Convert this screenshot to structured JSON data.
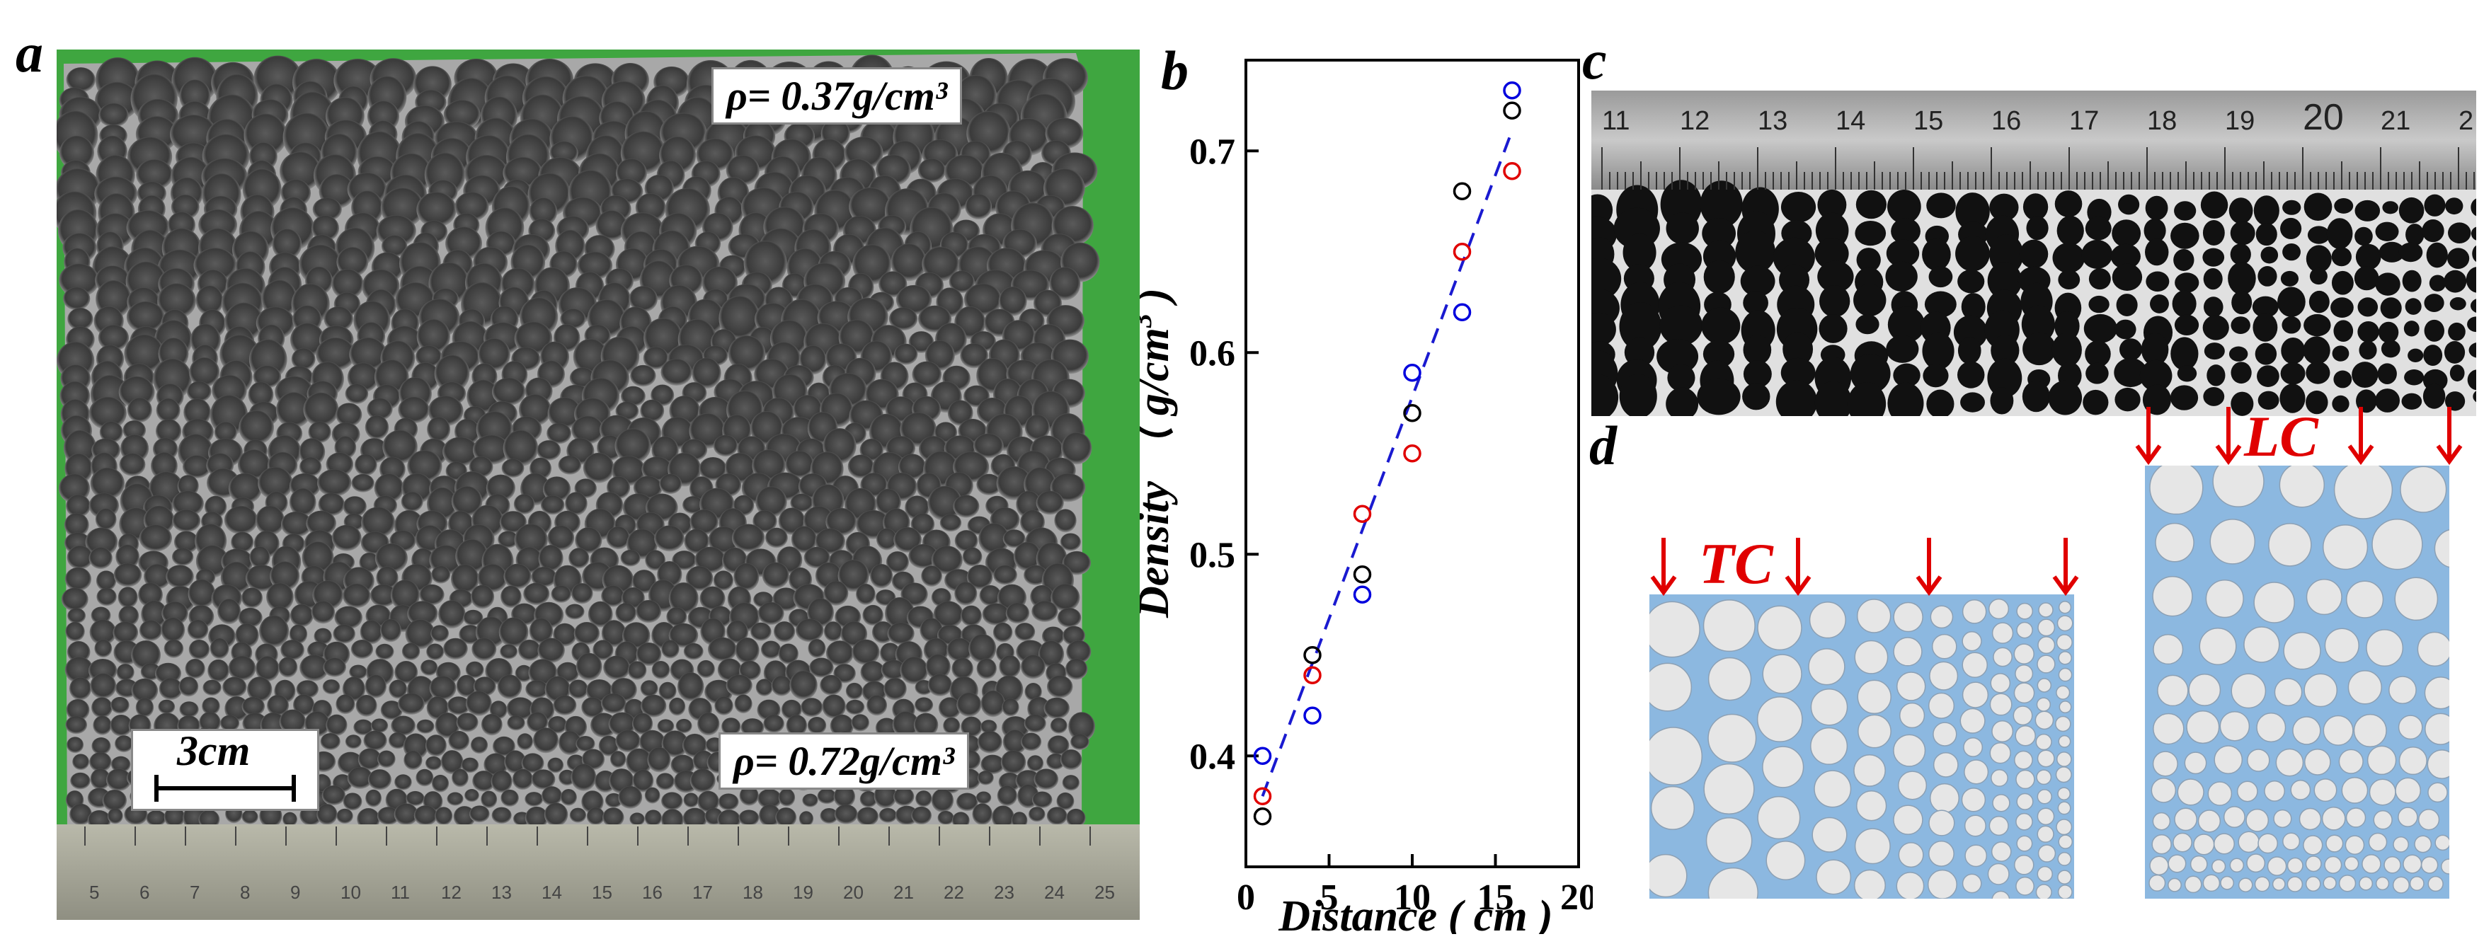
{
  "panels": {
    "a": {
      "letter": "a"
    },
    "b": {
      "letter": "b"
    },
    "c": {
      "letter": "c"
    },
    "d": {
      "letter": "d"
    }
  },
  "panel_a": {
    "top_density": "ρ= 0.37g/cm³",
    "bottom_density": "ρ= 0.72g/cm³",
    "scale_bar": "3cm",
    "ruler_ticks": [
      "5",
      "6",
      "7",
      "8",
      "9",
      "10",
      "11",
      "12",
      "13",
      "14",
      "15",
      "16",
      "17",
      "18",
      "19",
      "20",
      "21",
      "22",
      "23",
      "24",
      "25"
    ]
  },
  "panel_c": {
    "ruler_ticks": [
      "11",
      "12",
      "13",
      "14",
      "15",
      "16",
      "17",
      "18",
      "19",
      "20",
      "21",
      "2"
    ]
  },
  "panel_d": {
    "tc_label": "TC",
    "lc_label": "LC",
    "colors": {
      "matrix": "#8cb8e0",
      "cell": "#e6e6e6",
      "arrow": "#e00000"
    }
  },
  "chart_data": {
    "type": "scatter",
    "xlabel": "Distance ( cm )",
    "ylabel": "Density （ g/cm",
    "ylabel_sup": "3",
    "ylabel_end": " )",
    "xlim": [
      0,
      20
    ],
    "ylim": [
      0.345,
      0.745
    ],
    "xticks": [
      "0",
      "5",
      "10",
      "15",
      "20"
    ],
    "yticks": [
      "0.4",
      "0.5",
      "0.6",
      "0.7"
    ],
    "ytick_values": [
      0.4,
      0.5,
      0.6,
      0.7
    ],
    "xtick_values": [
      0,
      5,
      10,
      15,
      20
    ],
    "series": [
      {
        "color": "#000000",
        "x": [
          1,
          4,
          7,
          10,
          13,
          16
        ],
        "y": [
          0.37,
          0.45,
          0.49,
          0.57,
          0.68,
          0.72
        ]
      },
      {
        "color": "#e00000",
        "x": [
          1,
          4,
          7,
          10,
          13,
          16
        ],
        "y": [
          0.38,
          0.44,
          0.52,
          0.55,
          0.65,
          0.69
        ]
      },
      {
        "color": "#0000dd",
        "x": [
          1,
          4,
          7,
          10,
          13,
          16
        ],
        "y": [
          0.4,
          0.42,
          0.48,
          0.59,
          0.62,
          0.73
        ]
      }
    ],
    "fit_line": {
      "color": "#1a1ad0",
      "x": [
        1,
        16
      ],
      "y": [
        0.38,
        0.71
      ]
    }
  }
}
